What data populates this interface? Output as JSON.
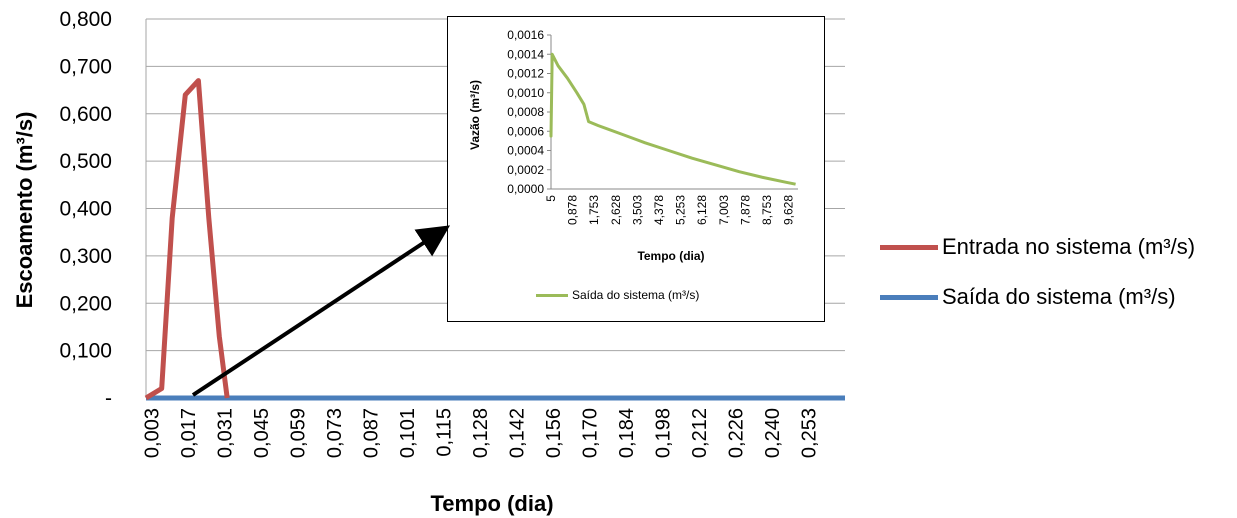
{
  "chart_data": [
    {
      "type": "line",
      "title": "",
      "xlabel": "Tempo (dia)",
      "ylabel": "Escoamento (m³/s)",
      "ylim": [
        0,
        0.8
      ],
      "yticks": [
        "-",
        "0,100",
        "0,200",
        "0,300",
        "0,400",
        "0,500",
        "0,600",
        "0,700",
        "0,800"
      ],
      "xticks": [
        "0,003",
        "0,017",
        "0,031",
        "0,045",
        "0,059",
        "0,073",
        "0,087",
        "0,101",
        "0,115",
        "0,128",
        "0,142",
        "0,156",
        "0,170",
        "0,184",
        "0,198",
        "0,212",
        "0,226",
        "0,240",
        "0,253"
      ],
      "xlim": [
        0,
        0.267
      ],
      "grid": true,
      "legend_position": "right",
      "series": [
        {
          "name": "Entrada no sistema (m³/s)",
          "color": "#c0504d",
          "x": [
            0.0,
            0.006,
            0.01,
            0.015,
            0.02,
            0.024,
            0.028,
            0.031
          ],
          "y": [
            0.0,
            0.02,
            0.38,
            0.64,
            0.67,
            0.38,
            0.13,
            0.0
          ]
        },
        {
          "name": "Saída do sistema (m³/s)",
          "color": "#4a7ebb",
          "x": [
            0.0,
            0.267
          ],
          "y": [
            0.0,
            0.0
          ]
        }
      ]
    },
    {
      "type": "line",
      "title": "",
      "xlabel": "Tempo (dia)",
      "ylabel": "Vazão (m³/s)",
      "ylim": [
        0,
        0.0016
      ],
      "yticks": [
        "0,0000",
        "0,0002",
        "0,0004",
        "0,0006",
        "0,0008",
        "0,0010",
        "0,0012",
        "0,0014",
        "0,0016"
      ],
      "xticks": [
        "5",
        "0,878",
        "1,753",
        "2,628",
        "3,503",
        "4,378",
        "5,253",
        "6,128",
        "7,003",
        "7,878",
        "8,753",
        "9,628"
      ],
      "xlim": [
        0,
        10.5
      ],
      "grid": false,
      "legend_position": "bottom",
      "series": [
        {
          "name": "Saída do sistema (m³/s)",
          "color": "#9bbb59",
          "x": [
            0.0,
            0.0,
            0.05,
            0.3,
            0.7,
            1.1,
            1.4,
            1.6,
            2.0,
            3.0,
            4.0,
            5.0,
            6.0,
            7.0,
            8.0,
            9.0,
            10.0,
            10.4
          ],
          "y": [
            0.0006,
            0.00055,
            0.0014,
            0.00128,
            0.00115,
            0.001,
            0.00088,
            0.0007,
            0.00066,
            0.00057,
            0.00048,
            0.0004,
            0.00032,
            0.00025,
            0.00018,
            0.00012,
            7e-05,
            5e-05
          ]
        }
      ]
    }
  ]
}
